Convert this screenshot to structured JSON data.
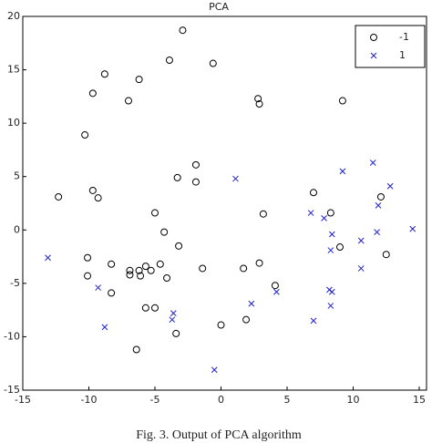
{
  "chart_data": {
    "type": "scatter",
    "title": "PCA",
    "caption": "Fig. 3.  Output of PCA algorithm",
    "xlim": [
      -15,
      15
    ],
    "ylim": [
      -15,
      20
    ],
    "xticks": [
      -15,
      -10,
      -5,
      0,
      5,
      10,
      15
    ],
    "yticks": [
      -15,
      -10,
      -5,
      0,
      5,
      10,
      15,
      20
    ],
    "legend": "upper right",
    "series": [
      {
        "name": "-1",
        "marker": "o",
        "color": "#000000",
        "x": [
          -2.9,
          -3.9,
          -0.6,
          -8.8,
          -6.2,
          -9.7,
          -7.0,
          2.8,
          2.9,
          9.2,
          -10.3,
          -1.9,
          -1.9,
          -3.3,
          -12.3,
          -9.7,
          -9.3,
          7.0,
          12.1,
          3.2,
          8.3,
          -5.0,
          -4.3,
          -3.2,
          -10.1,
          9.0,
          12.5,
          -8.3,
          -10.1,
          -6.9,
          -6.2,
          -5.7,
          -5.3,
          -6.1,
          -6.9,
          -4.6,
          -1.4,
          1.7,
          2.9,
          -4.1,
          4.1,
          -8.3,
          -5.7,
          -5.0,
          -3.4,
          1.9,
          0.0,
          -6.4
        ],
        "y": [
          18.7,
          15.9,
          15.6,
          14.6,
          14.1,
          12.8,
          12.1,
          12.3,
          11.8,
          12.1,
          8.9,
          6.1,
          4.5,
          4.9,
          3.1,
          3.7,
          3.0,
          3.5,
          3.1,
          1.5,
          1.6,
          1.6,
          -0.2,
          -1.5,
          -2.6,
          -1.6,
          -2.3,
          -3.2,
          -4.3,
          -3.8,
          -3.8,
          -3.4,
          -3.8,
          -4.3,
          -4.2,
          -3.2,
          -3.6,
          -3.6,
          -3.1,
          -4.5,
          -5.2,
          -5.9,
          -7.3,
          -7.3,
          -9.7,
          -8.4,
          -8.9,
          -11.2
        ]
      },
      {
        "name": "1",
        "marker": "x",
        "color": "#2020d0",
        "x": [
          1.1,
          9.2,
          11.5,
          12.8,
          6.8,
          7.8,
          11.9,
          14.5,
          8.4,
          10.6,
          11.8,
          -13.1,
          8.3,
          10.6,
          -9.3,
          4.2,
          8.2,
          8.4,
          2.3,
          8.3,
          -3.6,
          -3.7,
          -8.8,
          7.0,
          -0.5
        ],
        "y": [
          4.8,
          5.5,
          6.3,
          4.1,
          1.6,
          1.1,
          2.3,
          0.1,
          -0.4,
          -1.0,
          -0.2,
          -2.6,
          -1.9,
          -3.6,
          -5.4,
          -5.8,
          -5.6,
          -5.8,
          -6.9,
          -7.1,
          -7.8,
          -8.4,
          -9.1,
          -8.5,
          -13.1
        ]
      }
    ]
  }
}
